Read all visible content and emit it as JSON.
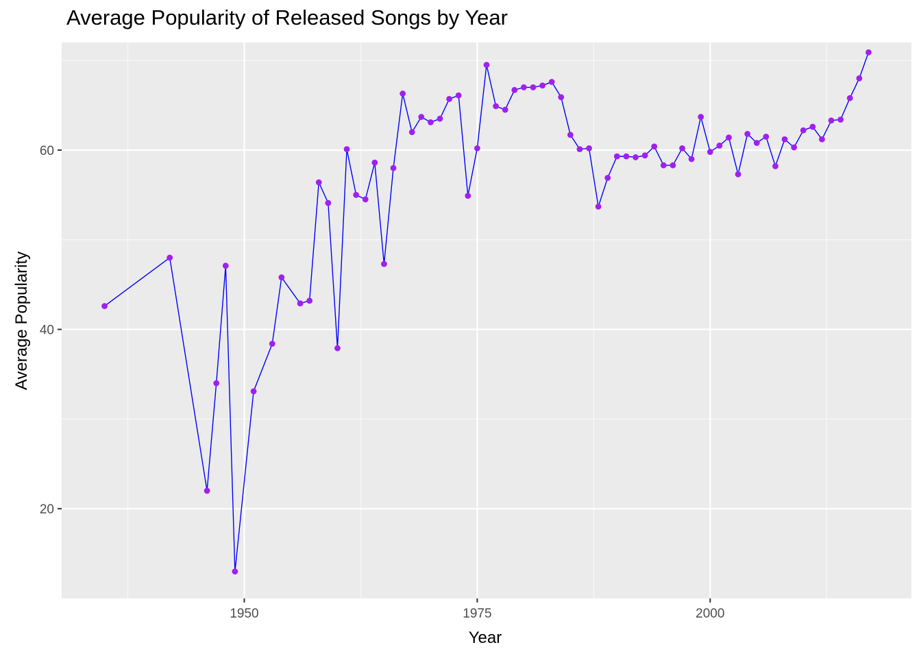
{
  "chart_data": {
    "type": "line",
    "title": "Average Popularity of Released Songs by Year",
    "xlabel": "Year",
    "ylabel": "Average Popularity",
    "xlim": [
      1930.4,
      2021.6
    ],
    "ylim": [
      10.0,
      72.0
    ],
    "x_ticks": [
      1950,
      1975,
      2000
    ],
    "y_ticks": [
      20,
      40,
      60
    ],
    "grid": true,
    "colors": {
      "panel_background": "#ebebeb",
      "grid_major": "#ffffff",
      "grid_minor": "#f7f7f7",
      "line": "#0000ff",
      "points": "#a020f0"
    },
    "series": [
      {
        "x": [
          1935,
          1942,
          1946,
          1947,
          1948,
          1949,
          1951,
          1953,
          1954,
          1956,
          1957,
          1958,
          1959,
          1960,
          1961,
          1962,
          1963,
          1964,
          1965,
          1966,
          1967,
          1968,
          1969,
          1970,
          1971,
          1972,
          1973,
          1974,
          1975,
          1976,
          1977,
          1978,
          1979,
          1980,
          1981,
          1982,
          1983,
          1984,
          1985,
          1986,
          1987,
          1988,
          1989,
          1990,
          1991,
          1992,
          1993,
          1994,
          1995,
          1996,
          1997,
          1998,
          1999,
          2000,
          2001,
          2002,
          2003,
          2004,
          2005,
          2006,
          2007,
          2008,
          2009,
          2010,
          2011,
          2012,
          2013,
          2014,
          2015,
          2016,
          2017
        ],
        "y": [
          42.6,
          48.0,
          22.0,
          34.0,
          47.1,
          13.0,
          33.1,
          38.4,
          45.8,
          42.9,
          43.2,
          56.4,
          54.1,
          37.9,
          60.1,
          55.0,
          54.5,
          58.6,
          47.3,
          58.0,
          66.3,
          62.0,
          63.7,
          63.1,
          63.5,
          65.7,
          66.1,
          54.9,
          60.2,
          69.5,
          64.9,
          64.5,
          66.7,
          67.0,
          67.0,
          67.2,
          67.6,
          65.9,
          61.7,
          60.1,
          60.2,
          53.7,
          56.9,
          59.3,
          59.3,
          59.2,
          59.4,
          60.4,
          58.3,
          58.3,
          60.2,
          59.0,
          63.7,
          59.8,
          60.5,
          61.4,
          57.3,
          61.8,
          60.8,
          61.5,
          58.2,
          61.2,
          60.3,
          62.2,
          62.6,
          61.2,
          63.3,
          63.4,
          65.8,
          68.0,
          70.9
        ]
      }
    ]
  }
}
